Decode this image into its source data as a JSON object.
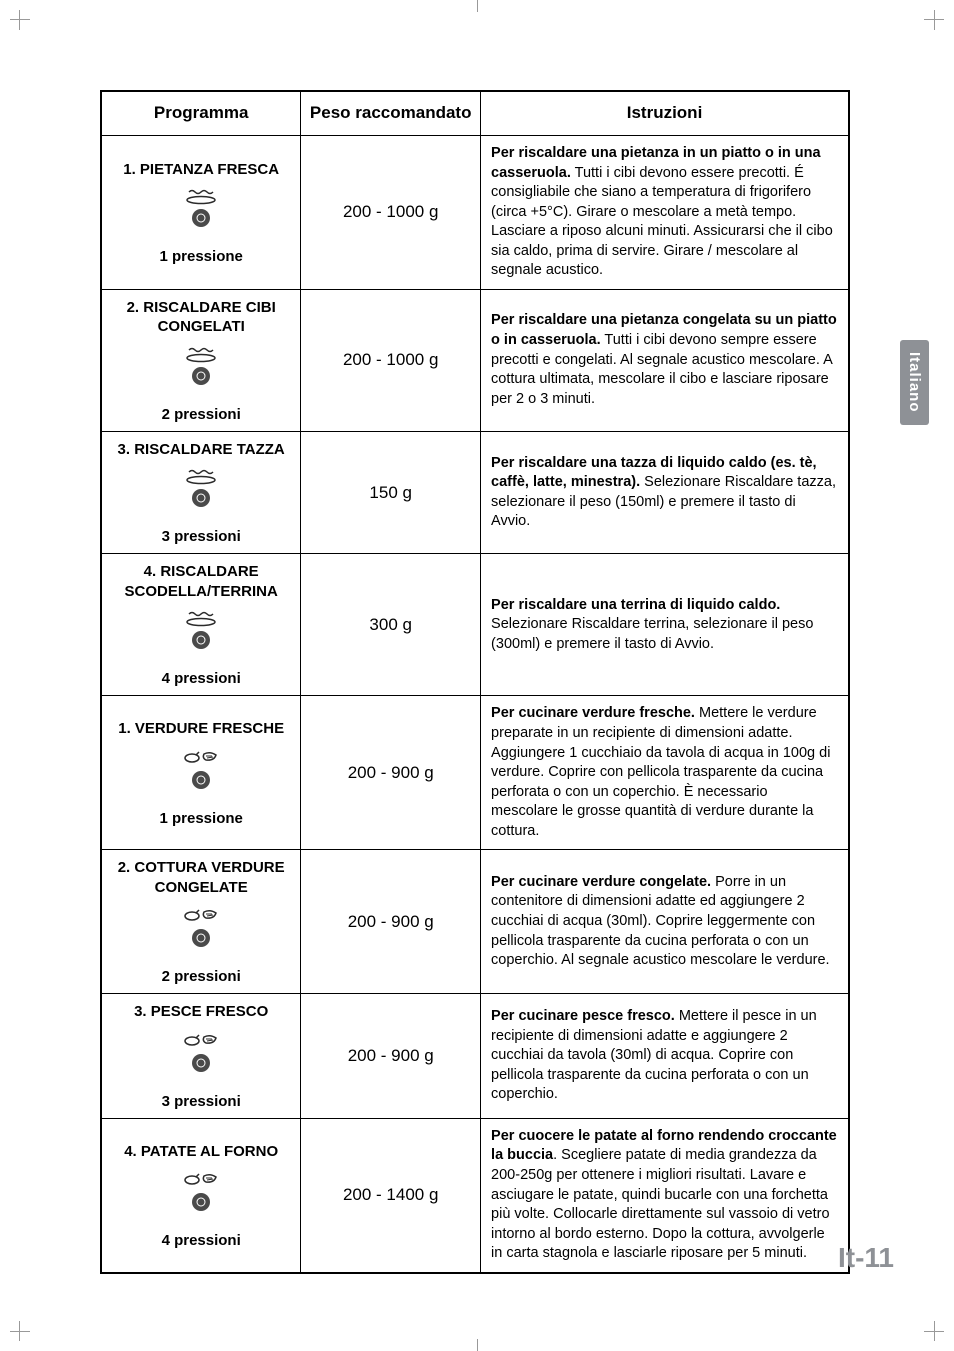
{
  "language_tab": "Italiano",
  "page_number": "It-11",
  "headers": {
    "col1": "Programma",
    "col2": "Peso raccomandato",
    "col3": "Istruzioni"
  },
  "icon_colors": {
    "steam_stroke": "#2b2b2b",
    "plate_fill": "#4a4a4a",
    "veg_stroke": "#2b2b2b"
  },
  "rows": [
    {
      "title": "1. PIETANZA FRESCA",
      "icon": "reheat",
      "press": "1 pressione",
      "weight": "200 - 1000 g",
      "instr_bold": "Per riscaldare una pietanza in un piatto o in una casseruola.",
      "instr_rest": " Tutti i cibi devono essere precotti. É consigliabile che siano a temperatura di frigorifero (circa +5°C). Girare o mescolare a metà tempo. Lasciare a riposo alcuni minuti. Assicurarsi che il cibo sia caldo, prima di servire. Girare / mescolare al segnale acustico."
    },
    {
      "title": "2. RISCALDARE CIBI CONGELATI",
      "icon": "reheat",
      "press": "2 pressioni",
      "weight": "200 - 1000 g",
      "instr_bold": "Per riscaldare una pietanza congelata su un piatto o in casseruola.",
      "instr_rest": " Tutti i cibi devono sempre essere precotti e congelati. Al segnale acustico mescolare. A cottura ultimata, mescolare il cibo e lasciare riposare per 2 o 3 minuti."
    },
    {
      "title": "3. RISCALDARE TAZZA",
      "icon": "reheat",
      "press": "3 pressioni",
      "weight": "150 g",
      "instr_bold": "Per riscaldare una tazza di liquido caldo (es. tè, caffè, latte, minestra).",
      "instr_rest": " Selezionare Riscaldare tazza, selezionare il peso (150ml) e premere il tasto di Avvio."
    },
    {
      "title": "4. RISCALDARE SCODELLA/TERRINA",
      "icon": "reheat",
      "press": "4 pressioni",
      "weight": "300 g",
      "instr_bold": "Per riscaldare una terrina di liquido caldo.",
      "instr_rest": " Selezionare Riscaldare terrina, selezionare il peso (300ml) e premere il tasto di Avvio."
    },
    {
      "title": "1. VERDURE FRESCHE",
      "icon": "cook",
      "press": "1 pressione",
      "weight": "200 - 900 g",
      "instr_bold": "Per cucinare verdure fresche.",
      "instr_rest": " Mettere le verdure preparate in un recipiente di dimensioni adatte. Aggiungere 1 cucchiaio da tavola di acqua in 100g di verdure. Coprire con pellicola trasparente da cucina perforata o con un coperchio. È necessario mescolare le grosse quantità di verdure durante la cottura."
    },
    {
      "title": "2. COTTURA VERDURE CONGELATE",
      "icon": "cook",
      "press": "2 pressioni",
      "weight": "200 - 900 g",
      "instr_bold": "Per cucinare verdure congelate.",
      "instr_rest": " Porre in un contenitore di dimensioni adatte ed aggiungere 2 cucchiai di acqua (30ml). Coprire leggermente con pellicola trasparente da cucina perforata o con un coperchio. Al segnale acustico mescolare le verdure."
    },
    {
      "title": "3. PESCE FRESCO",
      "icon": "cook",
      "press": "3 pressioni",
      "weight": "200 - 900 g",
      "instr_bold": "Per cucinare pesce fresco.",
      "instr_rest": " Mettere il pesce in un recipiente di dimensioni adatte e aggiungere 2 cucchiai da tavola (30ml) di acqua. Coprire con pellicola trasparente da cucina perforata o con un coperchio."
    },
    {
      "title": "4. PATATE AL FORNO",
      "icon": "cook",
      "press": "4 pressioni",
      "weight": "200 - 1400 g",
      "instr_bold": "Per cuocere le patate al forno rendendo croccante la buccia",
      "instr_rest": ". Scegliere patate di media grandezza da 200-250g per ottenere i migliori risultati. Lavare e asciugare le patate, quindi bucarle con una forchetta più volte. Collocarle direttamente sul vassoio di vetro intorno al bordo esterno. Dopo la cottura, avvolgerle in carta stagnola e lasciarle riposare per 5 minuti."
    }
  ]
}
